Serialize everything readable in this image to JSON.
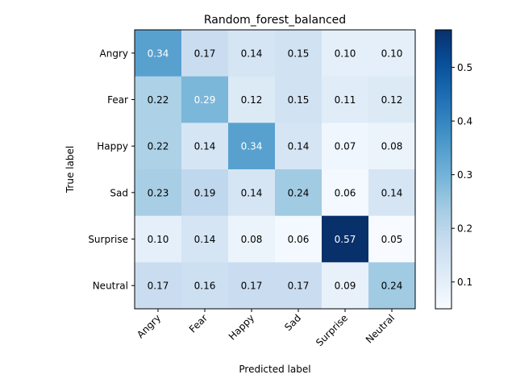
{
  "chart_data": {
    "type": "heatmap",
    "title": "Random_forest_balanced",
    "xlabel": "Predicted label",
    "ylabel": "True label",
    "x_categories": [
      "Angry",
      "Fear",
      "Happy",
      "Sad",
      "Surprise",
      "Neutral"
    ],
    "y_categories": [
      "Angry",
      "Fear",
      "Happy",
      "Sad",
      "Surprise",
      "Neutral"
    ],
    "values": [
      [
        0.34,
        0.17,
        0.14,
        0.15,
        0.1,
        0.1
      ],
      [
        0.22,
        0.29,
        0.12,
        0.15,
        0.11,
        0.12
      ],
      [
        0.22,
        0.14,
        0.34,
        0.14,
        0.07,
        0.08
      ],
      [
        0.23,
        0.19,
        0.14,
        0.24,
        0.06,
        0.14
      ],
      [
        0.1,
        0.14,
        0.08,
        0.06,
        0.57,
        0.05
      ],
      [
        0.17,
        0.16,
        0.17,
        0.17,
        0.09,
        0.24
      ]
    ],
    "colormap": "Blues",
    "color_range": [
      0.05,
      0.57
    ],
    "colorbar_ticks": [
      0.1,
      0.2,
      0.3,
      0.4,
      0.5
    ],
    "label_light_threshold": 0.285,
    "text_color_dark": "#000000",
    "text_color_light": "#ffffff"
  }
}
